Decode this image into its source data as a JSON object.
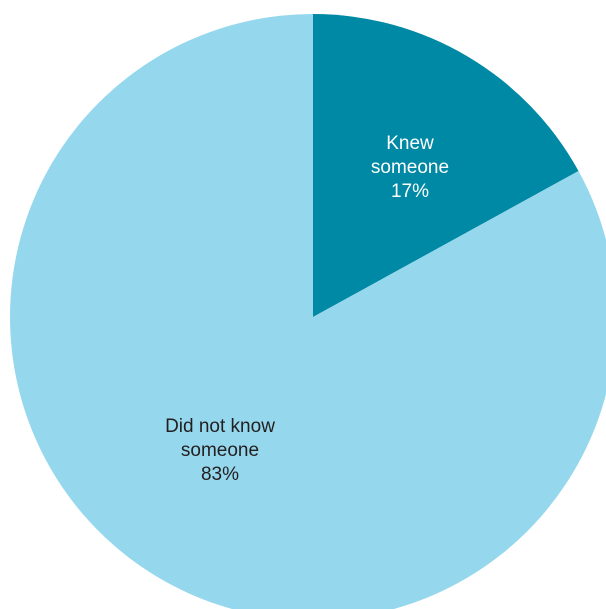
{
  "chart_data": {
    "type": "pie",
    "title": "",
    "start": "12 o'clock",
    "direction": "clockwise",
    "legend": "none",
    "slices": [
      {
        "label_lines": [
          "Knew",
          "someone"
        ],
        "value": 17,
        "value_label": "17%",
        "color": "#0089a4",
        "text_color": "#ffffff"
      },
      {
        "label_lines": [
          "Did not know",
          "someone"
        ],
        "value": 83,
        "value_label": "83%",
        "color": "#95d7ed",
        "text_color": "#231f20"
      }
    ]
  }
}
